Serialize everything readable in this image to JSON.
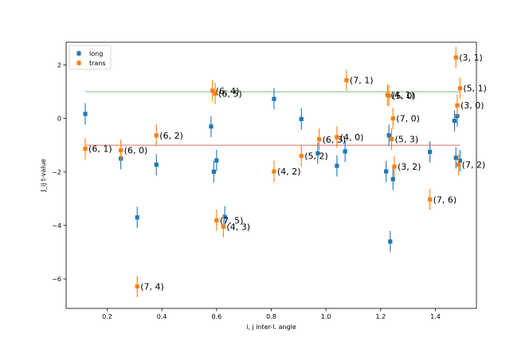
{
  "chart_data": {
    "type": "scatter",
    "xlabel": "i, j inter-l. angle",
    "ylabel": "J_ij t-value",
    "xlim": [
      0.05,
      1.55
    ],
    "ylim": [
      -7.1,
      2.85
    ],
    "xticks": [
      "0.2",
      "0.4",
      "0.6",
      "0.8",
      "1.0",
      "1.2",
      "1.4"
    ],
    "yticks": [
      "2",
      "0",
      "−2",
      "−4",
      "−6"
    ],
    "reference_lines": [
      {
        "name": "upper threshold",
        "y": 1.0,
        "color": "#2ca02c"
      },
      {
        "name": "lower threshold",
        "y": -1.0,
        "color": "#d62728"
      }
    ],
    "legend": {
      "location": "top-left",
      "entries": [
        "long",
        "trans"
      ]
    },
    "series": [
      {
        "name": "long",
        "color": "#1f77b4",
        "points": [
          {
            "x": 0.12,
            "y": 0.17,
            "err": 0.4
          },
          {
            "x": 0.25,
            "y": -1.5,
            "err": 0.4
          },
          {
            "x": 0.31,
            "y": -3.7,
            "err": 0.4
          },
          {
            "x": 0.38,
            "y": -1.73,
            "err": 0.4
          },
          {
            "x": 0.58,
            "y": -0.3,
            "err": 0.4
          },
          {
            "x": 0.59,
            "y": -1.99,
            "err": 0.4
          },
          {
            "x": 0.6,
            "y": -1.57,
            "err": 0.4
          },
          {
            "x": 0.63,
            "y": -3.68,
            "err": 0.4
          },
          {
            "x": 0.81,
            "y": 0.73,
            "err": 0.4
          },
          {
            "x": 0.91,
            "y": -0.02,
            "err": 0.4
          },
          {
            "x": 0.97,
            "y": -1.3,
            "err": 0.4
          },
          {
            "x": 1.04,
            "y": -1.77,
            "err": 0.4
          },
          {
            "x": 1.07,
            "y": -1.23,
            "err": 0.4
          },
          {
            "x": 1.22,
            "y": -1.98,
            "err": 0.4
          },
          {
            "x": 1.23,
            "y": -0.63,
            "err": 0.4
          },
          {
            "x": 1.235,
            "y": -4.6,
            "err": 0.4
          },
          {
            "x": 1.245,
            "y": -2.27,
            "err": 0.4
          },
          {
            "x": 1.38,
            "y": -1.25,
            "err": 0.4
          },
          {
            "x": 1.47,
            "y": -0.09,
            "err": 0.4
          },
          {
            "x": 1.475,
            "y": -1.47,
            "err": 0.4
          },
          {
            "x": 1.48,
            "y": 0.09,
            "err": 0.4
          },
          {
            "x": 1.49,
            "y": -1.58,
            "err": 0.4
          }
        ]
      },
      {
        "name": "trans",
        "color": "#ff7f0e",
        "points": [
          {
            "x": 0.12,
            "y": -1.13,
            "err": 0.4,
            "label": "(6, 1)"
          },
          {
            "x": 0.25,
            "y": -1.19,
            "err": 0.4,
            "label": "(6, 0)"
          },
          {
            "x": 0.31,
            "y": -6.28,
            "err": 0.4,
            "label": "(7, 4)"
          },
          {
            "x": 0.38,
            "y": -0.63,
            "err": 0.4,
            "label": "(6, 2)"
          },
          {
            "x": 0.585,
            "y": 1.04,
            "err": 0.4,
            "label": "(6, 4)"
          },
          {
            "x": 0.595,
            "y": 0.93,
            "err": 0.4,
            "label": "(6, 5)"
          },
          {
            "x": 0.6,
            "y": -3.81,
            "err": 0.4,
            "label": "(7, 5)"
          },
          {
            "x": 0.625,
            "y": -4.05,
            "err": 0.4,
            "label": "(4, 3)"
          },
          {
            "x": 0.81,
            "y": -1.98,
            "err": 0.4,
            "label": "(4, 2)"
          },
          {
            "x": 0.91,
            "y": -1.4,
            "err": 0.4,
            "label": "(5, 2)"
          },
          {
            "x": 0.975,
            "y": -0.78,
            "err": 0.4,
            "label": "(6, 3)"
          },
          {
            "x": 1.04,
            "y": -0.7,
            "err": 0.4,
            "label": "(4, 0)"
          },
          {
            "x": 1.075,
            "y": 1.43,
            "err": 0.4,
            "label": "(7, 1)"
          },
          {
            "x": 1.225,
            "y": 0.88,
            "err": 0.4,
            "label": "(4, 1)"
          },
          {
            "x": 1.23,
            "y": 0.85,
            "err": 0.4,
            "label": "(5, 0)"
          },
          {
            "x": 1.245,
            "y": 0.0,
            "err": 0.4,
            "label": "(7, 0)"
          },
          {
            "x": 1.24,
            "y": -0.77,
            "err": 0.4,
            "label": "(5, 3)"
          },
          {
            "x": 1.25,
            "y": -1.8,
            "err": 0.4,
            "label": "(3, 2)"
          },
          {
            "x": 1.38,
            "y": -3.03,
            "err": 0.4,
            "label": "(7, 6)"
          },
          {
            "x": 1.475,
            "y": 2.28,
            "err": 0.4,
            "label": "(3, 1)"
          },
          {
            "x": 1.48,
            "y": 0.49,
            "err": 0.4,
            "label": "(3, 0)"
          },
          {
            "x": 1.485,
            "y": -1.73,
            "err": 0.4,
            "label": "(7, 2)"
          },
          {
            "x": 1.49,
            "y": 1.13,
            "err": 0.4,
            "label": "(5, 1)"
          }
        ]
      }
    ]
  }
}
